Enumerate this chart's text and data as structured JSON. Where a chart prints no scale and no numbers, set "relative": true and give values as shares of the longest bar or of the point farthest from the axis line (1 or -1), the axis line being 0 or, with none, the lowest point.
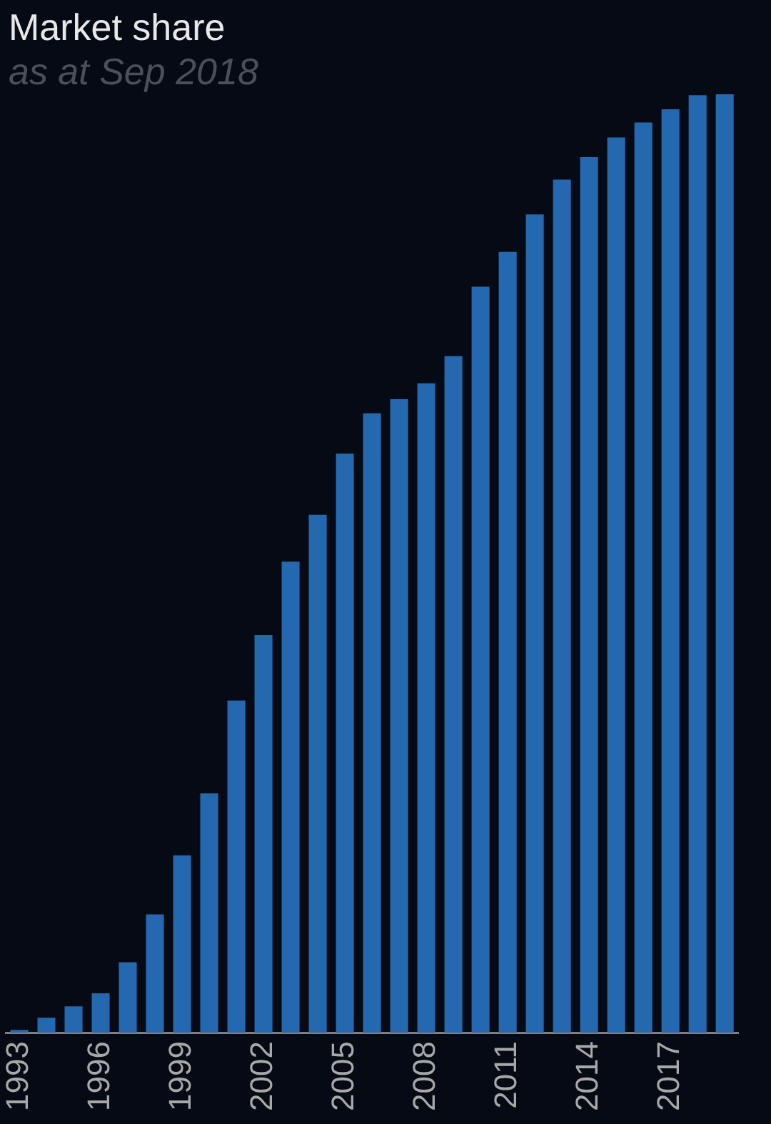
{
  "chart_data": {
    "type": "bar",
    "title": "Market share",
    "subtitle": "as at Sep 2018",
    "relative": true,
    "legend": false,
    "color": "#2468b0",
    "categories": [
      "1993",
      null,
      null,
      "1996",
      null,
      null,
      "1999",
      null,
      null,
      "2002",
      null,
      null,
      "2005",
      null,
      null,
      "2008",
      null,
      null,
      "2011",
      null,
      null,
      "2014",
      null,
      null,
      "2017",
      null,
      null
    ],
    "values": [
      0.003,
      0.016,
      0.028,
      0.042,
      0.075,
      0.126,
      0.189,
      0.255,
      0.354,
      0.424,
      0.502,
      0.552,
      0.617,
      0.66,
      0.675,
      0.692,
      0.721,
      0.795,
      0.832,
      0.872,
      0.909,
      0.933,
      0.954,
      0.97,
      0.984,
      0.999,
      1
    ]
  }
}
